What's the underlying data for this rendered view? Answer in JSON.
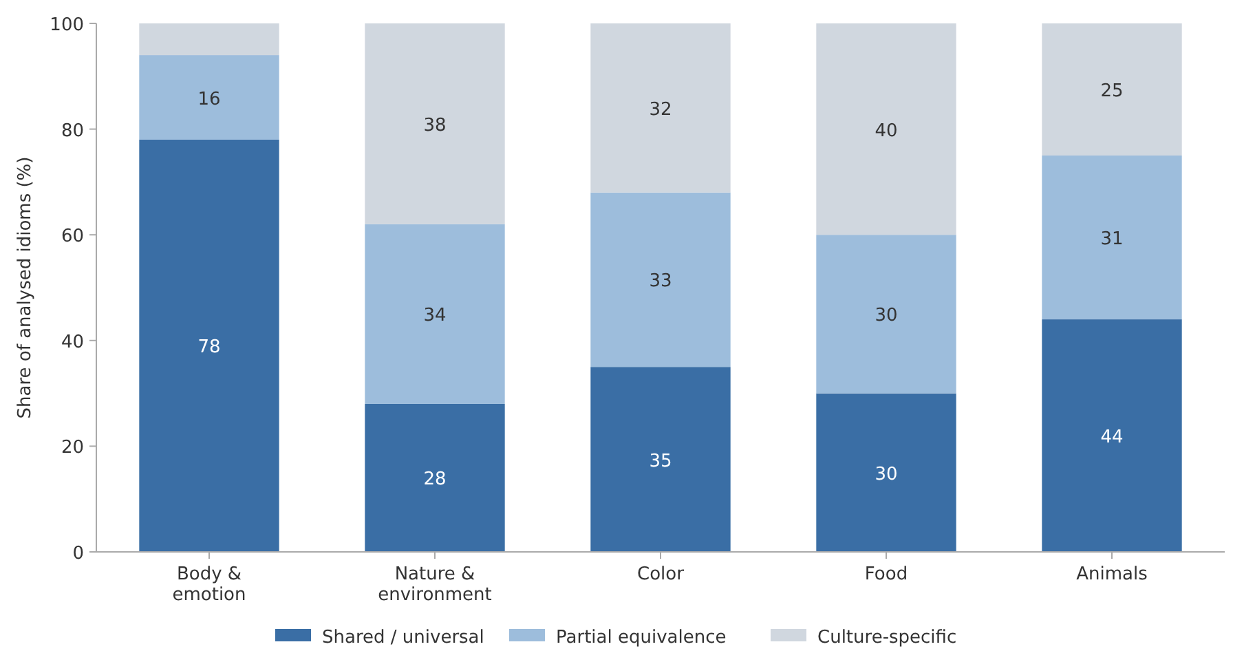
{
  "chart_data": {
    "type": "bar",
    "stacked": true,
    "ylabel": "Share of analysed idioms (%)",
    "categories": [
      "Body &\nemotion",
      "Nature &\nenvironment",
      "Color",
      "Food",
      "Animals"
    ],
    "series": [
      {
        "name": "Shared / universal",
        "color": "#3a6ea5",
        "values": [
          78,
          28,
          35,
          30,
          44
        ],
        "value_labels": [
          "78",
          "28",
          "35",
          "30",
          "44"
        ]
      },
      {
        "name": "Partial equivalence",
        "color": "#9dbddc",
        "values": [
          16,
          34,
          33,
          30,
          31
        ],
        "value_labels": [
          "16",
          "34",
          "33",
          "30",
          "31"
        ]
      },
      {
        "name": "Culture-specific",
        "color": "#d0d7df",
        "values": [
          6,
          38,
          32,
          40,
          25
        ],
        "value_labels": [
          null,
          "38",
          "32",
          "40",
          "25"
        ]
      }
    ],
    "ylim": [
      0,
      100
    ],
    "yticks": [
      0,
      20,
      40,
      60,
      80,
      100
    ],
    "legend": "bottom"
  }
}
